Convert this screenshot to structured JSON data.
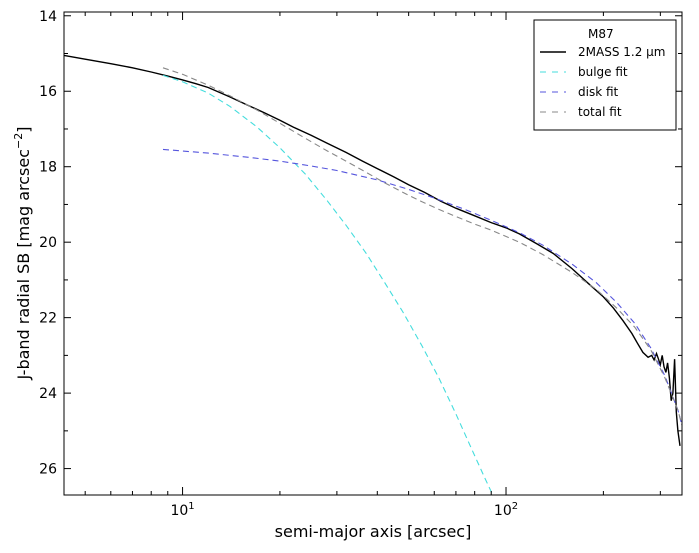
{
  "chart_data": {
    "type": "line",
    "xlabel": "semi-major axis [arcsec]",
    "ylabel": "J-band radial SB [mag arcsec",
    "ylabel_sup": "−2",
    "ylabel_close": "]",
    "x_scale": "log",
    "xlim": [
      4.3,
      350
    ],
    "ylim": [
      26.7,
      13.9
    ],
    "y_inverted": true,
    "x_major_ticks": [
      10,
      100
    ],
    "x_tick_labels": [
      {
        "base": "10",
        "exp": "1"
      },
      {
        "base": "10",
        "exp": "2"
      }
    ],
    "y_ticks": [
      14,
      16,
      18,
      20,
      22,
      24,
      26
    ],
    "y_tick_labels": [
      "14",
      "16",
      "18",
      "20",
      "22",
      "24",
      "26"
    ],
    "grid": false,
    "legend": {
      "placement": "top-right",
      "title": "M87",
      "entries": [
        "2MASS 1.2 μm",
        "bulge fit",
        "disk fit",
        "total fit"
      ]
    },
    "series": [
      {
        "name": "2MASS 1.2 μm",
        "color": "#000000",
        "style": "solid",
        "x": [
          4.3,
          5,
          6,
          7,
          8,
          9,
          10,
          11,
          12,
          14,
          16,
          18,
          20,
          22,
          25,
          28,
          32,
          36,
          40,
          45,
          50,
          56,
          63,
          70,
          80,
          90,
          100,
          110,
          125,
          140,
          160,
          180,
          200,
          215,
          230,
          245,
          255,
          265,
          275,
          282,
          287,
          292,
          296,
          300,
          304,
          308,
          312,
          316,
          320,
          324,
          328,
          332,
          336,
          340,
          345
        ],
        "y": [
          15.05,
          15.15,
          15.27,
          15.38,
          15.49,
          15.6,
          15.7,
          15.8,
          15.9,
          16.15,
          16.38,
          16.58,
          16.77,
          16.95,
          17.17,
          17.38,
          17.62,
          17.85,
          18.05,
          18.27,
          18.48,
          18.68,
          18.92,
          19.1,
          19.3,
          19.48,
          19.62,
          19.78,
          20.05,
          20.3,
          20.7,
          21.1,
          21.45,
          21.75,
          22.08,
          22.42,
          22.68,
          22.92,
          23.05,
          23.0,
          23.12,
          22.95,
          23.1,
          23.25,
          23.0,
          23.3,
          23.45,
          23.2,
          23.6,
          24.2,
          24.0,
          23.1,
          24.5,
          25.0,
          25.4
        ]
      },
      {
        "name": "bulge fit",
        "color": "#44dddd",
        "style": "dashed",
        "x": [
          8.7,
          10,
          12,
          14,
          17,
          20,
          24,
          28,
          32,
          37,
          42,
          48,
          55,
          62,
          70,
          78,
          86,
          91
        ],
        "y": [
          15.58,
          15.75,
          16.05,
          16.4,
          16.95,
          17.5,
          18.2,
          18.9,
          19.55,
          20.3,
          21.05,
          21.85,
          22.75,
          23.6,
          24.55,
          25.45,
          26.25,
          26.7
        ]
      },
      {
        "name": "disk fit",
        "color": "#5555dd",
        "style": "dashed",
        "x": [
          8.7,
          12,
          16,
          20,
          25,
          30,
          40,
          50,
          60,
          75,
          90,
          110,
          130,
          160,
          190,
          220,
          250,
          280,
          310,
          340,
          350
        ],
        "y": [
          17.54,
          17.64,
          17.75,
          17.85,
          17.98,
          18.1,
          18.35,
          18.6,
          18.83,
          19.14,
          19.42,
          19.75,
          20.08,
          20.58,
          21.07,
          21.6,
          22.15,
          22.8,
          23.55,
          24.45,
          24.85
        ]
      },
      {
        "name": "total fit",
        "color": "#888888",
        "style": "dashed",
        "x": [
          8.7,
          10,
          12,
          14,
          17,
          20,
          24,
          28,
          32,
          37,
          42,
          48,
          55,
          62,
          70,
          80,
          90,
          110,
          130,
          160,
          190,
          220,
          250,
          280,
          310,
          340,
          350
        ],
        "y": [
          15.38,
          15.55,
          15.84,
          16.12,
          16.5,
          16.85,
          17.25,
          17.58,
          17.85,
          18.15,
          18.42,
          18.68,
          18.93,
          19.13,
          19.32,
          19.52,
          19.68,
          20.0,
          20.33,
          20.8,
          21.25,
          21.75,
          22.25,
          22.85,
          23.6,
          24.45,
          24.85
        ]
      }
    ]
  }
}
